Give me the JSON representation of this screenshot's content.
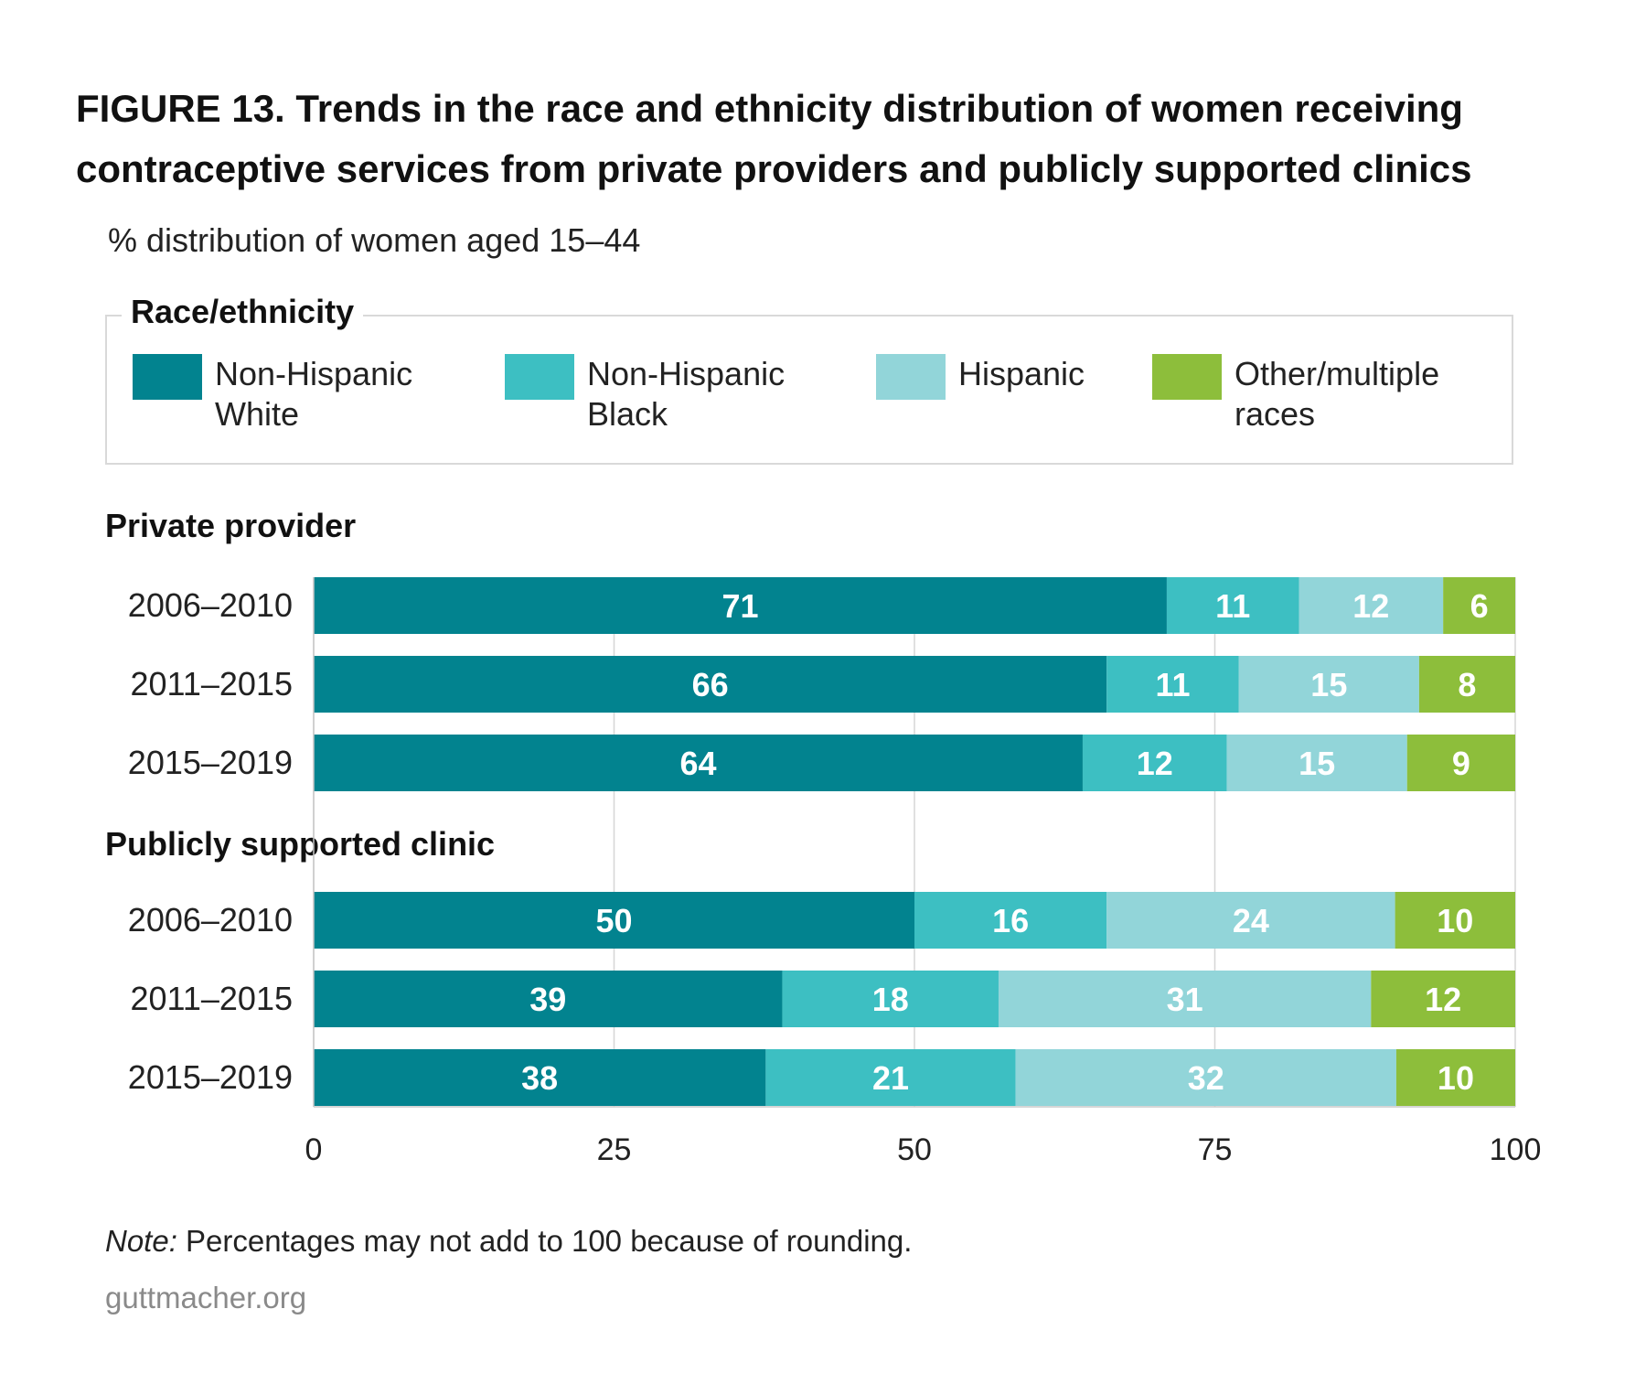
{
  "title": "FIGURE 13. Trends in the race and ethnicity distribution of women receiving contraceptive services from private providers and publicly supported clinics",
  "subtitle": "% distribution of women aged 15–44",
  "legend": {
    "title": "Race/ethnicity",
    "items": [
      {
        "label": "Non-Hispanic\nWhite",
        "color": "#02838f"
      },
      {
        "label": "Non-Hispanic\nBlack",
        "color": "#3dbfc2"
      },
      {
        "label": "Hispanic",
        "color": "#92d5d9"
      },
      {
        "label": "Other/multiple\nraces",
        "color": "#8dbe3b"
      }
    ]
  },
  "chart_data": {
    "type": "bar",
    "orientation": "horizontal",
    "stacked": true,
    "xlim": [
      0,
      100
    ],
    "xticks": [
      "0",
      "25",
      "50",
      "75",
      "100"
    ],
    "grid": true,
    "series": [
      {
        "name": "Non-Hispanic White",
        "color": "#02838f"
      },
      {
        "name": "Non-Hispanic Black",
        "color": "#3dbfc2"
      },
      {
        "name": "Hispanic",
        "color": "#92d5d9"
      },
      {
        "name": "Other/multiple races",
        "color": "#8dbe3b"
      }
    ],
    "groups": [
      {
        "label": "Private provider",
        "rows": [
          {
            "label": "2006–2010",
            "values": [
              71,
              11,
              12,
              6
            ]
          },
          {
            "label": "2011–2015",
            "values": [
              66,
              11,
              15,
              8
            ]
          },
          {
            "label": "2015–2019",
            "values": [
              64,
              12,
              15,
              9
            ]
          }
        ]
      },
      {
        "label": "Publicly supported clinic",
        "rows": [
          {
            "label": "2006–2010",
            "values": [
              50,
              16,
              24,
              10
            ]
          },
          {
            "label": "2011–2015",
            "values": [
              39,
              18,
              31,
              12
            ]
          },
          {
            "label": "2015–2019",
            "values": [
              38,
              21,
              32,
              10
            ]
          }
        ]
      }
    ]
  },
  "note_label": "Note:",
  "note_text": " Percentages may not add to 100 because of rounding.",
  "source": "guttmacher.org"
}
